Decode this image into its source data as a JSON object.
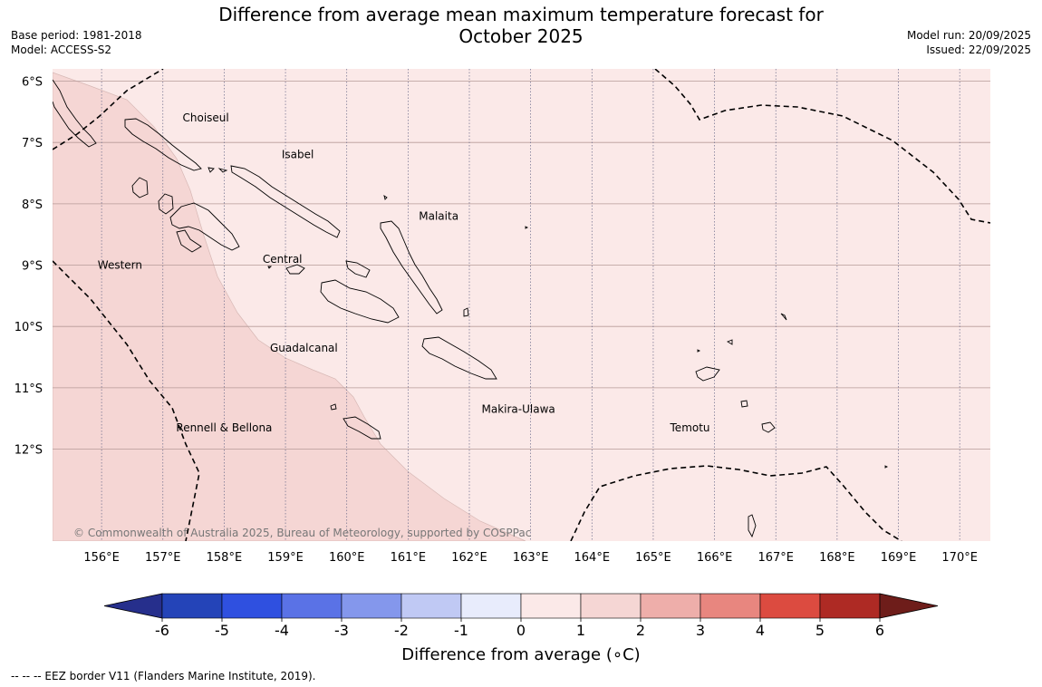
{
  "header": {
    "title_line1": "Difference from average mean maximum temperature forecast for",
    "title_line2": "October 2025",
    "base_period": "Base period: 1981-2018",
    "model": "Model: ACCESS-S2",
    "model_run": "Model run: 20/09/2025",
    "issued": "Issued: 22/09/2025"
  },
  "map": {
    "lat_labels": [
      "6°S",
      "7°S",
      "8°S",
      "9°S",
      "10°S",
      "11°S",
      "12°S"
    ],
    "lat_values": [
      6,
      7,
      8,
      9,
      10,
      11,
      12
    ],
    "lon_labels": [
      "156°E",
      "157°E",
      "158°E",
      "159°E",
      "160°E",
      "161°E",
      "162°E",
      "163°E",
      "164°E",
      "165°E",
      "166°E",
      "167°E",
      "168°E",
      "169°E",
      "170°E"
    ],
    "lon_values": [
      156,
      157,
      158,
      159,
      160,
      161,
      162,
      163,
      164,
      165,
      166,
      167,
      168,
      169,
      170
    ],
    "lon_range": [
      155.2,
      170.5
    ],
    "lat_range": [
      5.8,
      13.5
    ],
    "colors": {
      "anomaly_0_1": "#fbe9e8",
      "anomaly_1_2": "#f5d6d4",
      "grid": "#888888",
      "coast": "#000000"
    },
    "regions": [
      {
        "name": "Choiseul",
        "lon": 157.7,
        "lat": 6.6
      },
      {
        "name": "Isabel",
        "lon": 159.2,
        "lat": 7.2
      },
      {
        "name": "Malaita",
        "lon": 161.5,
        "lat": 8.2
      },
      {
        "name": "Western",
        "lon": 156.3,
        "lat": 9.0
      },
      {
        "name": "Central",
        "lon": 158.95,
        "lat": 8.9
      },
      {
        "name": "Guadalcanal",
        "lon": 159.3,
        "lat": 10.35
      },
      {
        "name": "Makira-Ulawa",
        "lon": 162.8,
        "lat": 11.35
      },
      {
        "name": "Rennell & Bellona",
        "lon": 158.0,
        "lat": 11.65
      },
      {
        "name": "Temotu",
        "lon": 165.6,
        "lat": 11.65
      }
    ],
    "copyright": "© Commonwealth of Australia 2025, Bureau of Meteorology, supported by COSPPac"
  },
  "colorbar": {
    "label": "Difference from average (∘C)",
    "ticks": [
      "-6",
      "-5",
      "-4",
      "-3",
      "-2",
      "-1",
      "0",
      "1",
      "2",
      "3",
      "4",
      "5",
      "6"
    ],
    "colors": [
      "#262f8c",
      "#2444b8",
      "#2f50e0",
      "#5a72e6",
      "#8497ec",
      "#c0c9f4",
      "#e8ecfc",
      "#fbe9e8",
      "#f5d6d4",
      "#eeaeaa",
      "#e8867f",
      "#dc4b40",
      "#ae2a24",
      "#6e1d1a"
    ]
  },
  "footnote": "--  --  -- EEZ border V11 (Flanders Marine Institute, 2019)."
}
